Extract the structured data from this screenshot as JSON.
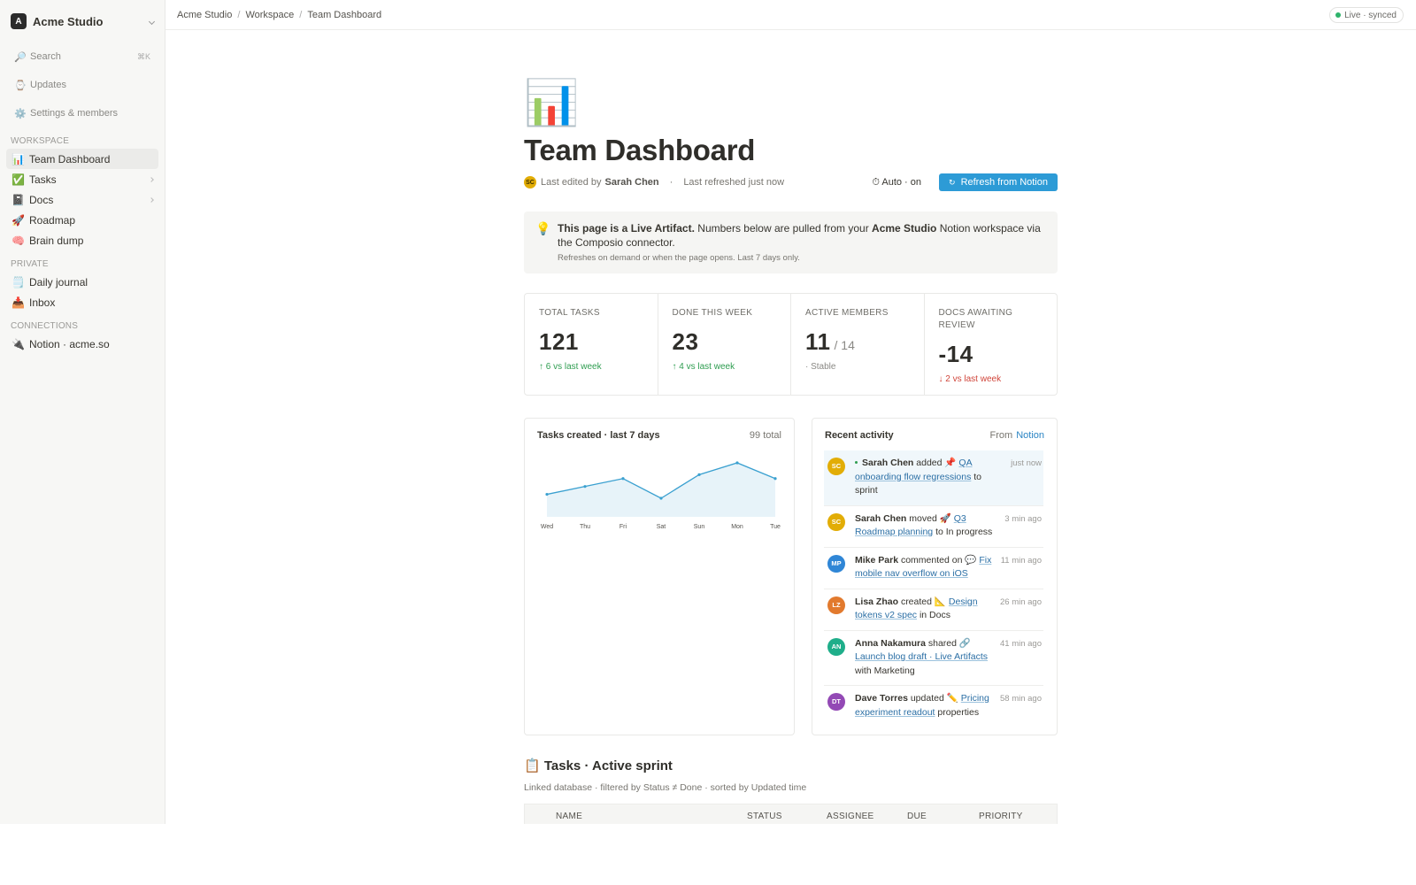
{
  "sidebar": {
    "workspace_initial": "A",
    "workspace": "Acme Studio",
    "nav": [
      {
        "icon": "🔎",
        "label": "Search",
        "shortcut": "⌘K"
      },
      {
        "icon": "⌚",
        "label": "Updates"
      },
      {
        "icon": "⚙️",
        "label": "Settings & members"
      }
    ],
    "sections": [
      {
        "title": "WORKSPACE",
        "items": [
          {
            "icon": "📊",
            "label": "Team Dashboard",
            "active": true
          },
          {
            "icon": "✅",
            "label": "Tasks",
            "expandable": true
          },
          {
            "icon": "📓",
            "label": "Docs",
            "expandable": true
          },
          {
            "icon": "🚀",
            "label": "Roadmap"
          },
          {
            "icon": "🧠",
            "label": "Brain dump"
          }
        ]
      },
      {
        "title": "PRIVATE",
        "items": [
          {
            "icon": "🗒️",
            "label": "Daily journal"
          },
          {
            "icon": "📥",
            "label": "Inbox"
          }
        ]
      },
      {
        "title": "CONNECTIONS",
        "items": [
          {
            "icon": "🔌",
            "label": "Notion · acme.so"
          }
        ]
      }
    ]
  },
  "topbar": {
    "breadcrumbs": [
      "Acme Studio",
      "Workspace",
      "Team Dashboard"
    ],
    "separator": "/",
    "status": "Live · synced"
  },
  "header": {
    "icon": "📊",
    "title": "Team Dashboard",
    "editor_initials": "SC",
    "edited_prefix": "Last edited by",
    "editor": "Sarah Chen",
    "dot": "·",
    "refreshed": "Last refreshed just now",
    "auto_icon": "⏱",
    "auto": "Auto · on",
    "button_icon": "↻",
    "button": "Refresh from Notion"
  },
  "callout": {
    "icon": "💡",
    "lead": "This page is a Live Artifact.",
    "text1": " Numbers below are pulled from your ",
    "workspace": "Acme Studio",
    "text2": " Notion workspace via the Composio connector.",
    "note": "Refreshes on demand or when the page opens. Last 7 days only."
  },
  "stats": [
    {
      "label": "TOTAL TASKS",
      "value": 121,
      "delta": "↑ 6 vs last week",
      "trend": "up"
    },
    {
      "label": "DONE THIS WEEK",
      "value": 23,
      "delta": "↑ 4 vs last week",
      "trend": "up"
    },
    {
      "label": "ACTIVE MEMBERS",
      "value": 11,
      "suffix": "/ 14",
      "delta": "· Stable",
      "trend": "flat"
    },
    {
      "label": "DOCS AWAITING REVIEW",
      "value": -14,
      "delta": "↓ 2 vs last week",
      "trend": "down"
    }
  ],
  "tasks_chart": {
    "type": "line",
    "title": "Tasks created · last 7 days",
    "total": "99 total",
    "categories": [
      "Wed",
      "Thu",
      "Fri",
      "Sat",
      "Sun",
      "Mon",
      "Tue"
    ],
    "values": [
      11,
      13,
      15,
      10,
      16,
      19,
      15
    ],
    "color": "#3aa0d0"
  },
  "activity": {
    "title": "Recent activity",
    "source_prefix": "From",
    "source": "Notion",
    "items": [
      {
        "initials": "SC",
        "color": "#e2ad06",
        "actor": "Sarah Chen",
        "action": "added",
        "icon": "📌",
        "target": "QA onboarding flow regressions",
        "rest": "to sprint",
        "time": "just now",
        "new": true
      },
      {
        "initials": "SC",
        "color": "#e2ad06",
        "actor": "Sarah Chen",
        "action": "moved",
        "icon": "🚀",
        "target": "Q3 Roadmap planning",
        "rest": "to In progress",
        "time": "3 min ago"
      },
      {
        "initials": "MP",
        "color": "#2f86d6",
        "actor": "Mike Park",
        "action": "commented on",
        "icon": "💬",
        "target": "Fix mobile nav overflow on iOS",
        "time": "11 min ago"
      },
      {
        "initials": "LZ",
        "color": "#e27a2e",
        "actor": "Lisa Zhao",
        "action": "created",
        "icon": "📐",
        "target": "Design tokens v2 spec",
        "rest": "in Docs",
        "time": "26 min ago"
      },
      {
        "initials": "AN",
        "color": "#1fae8a",
        "actor": "Anna Nakamura",
        "action": "shared",
        "icon": "🔗",
        "target": "Launch blog draft · Live Artifacts",
        "rest": "with Marketing",
        "time": "41 min ago"
      },
      {
        "initials": "DT",
        "color": "#9349b5",
        "actor": "Dave Torres",
        "action": "updated",
        "icon": "✏️",
        "target": "Pricing experiment readout",
        "rest": "properties",
        "time": "58 min ago"
      }
    ]
  },
  "table": {
    "icon": "📋",
    "title": "Tasks · Active sprint",
    "subtitle": "Linked database · filtered by Status ≠ Done · sorted by Updated time",
    "columns": [
      "NAME",
      "STATUS",
      "ASSIGNEE",
      "DUE",
      "PRIORITY"
    ]
  }
}
